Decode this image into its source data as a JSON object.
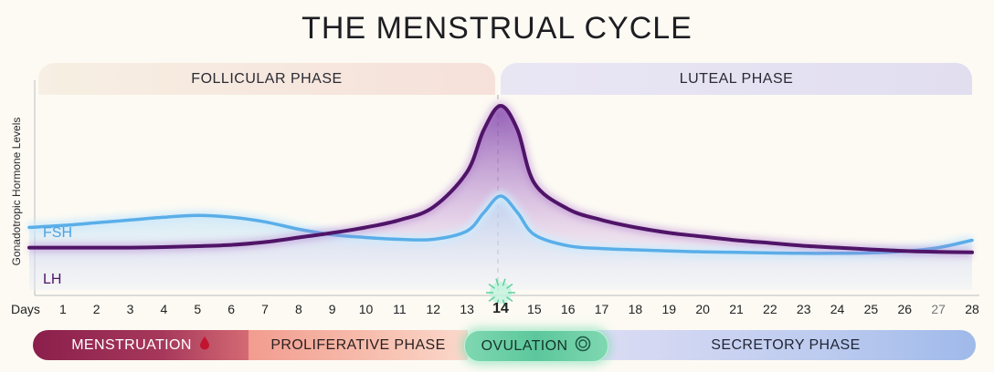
{
  "title": "THE MENSTRUAL CYCLE",
  "phases": {
    "follicular": "FOLLICULAR PHASE",
    "luteal": "LUTEAL PHASE"
  },
  "stages": {
    "menstruation": "MENSTRUATION",
    "proliferative": "PROLIFERATIVE PHASE",
    "ovulation": "OVULATION",
    "secretory": "SECRETORY PHASE"
  },
  "icons": {
    "menstruation": "blood-drop-icon",
    "ovulation": "egg-icon",
    "ovulation_marker": "ovulation-burst-icon"
  },
  "colors": {
    "fsh": "#5aaee8",
    "lh": "#4f1467",
    "menstruation": "#8b1f4c",
    "proliferative": "#f5ae9f",
    "ovulation": "#66cfa4",
    "secretory": "#b3c5ee"
  },
  "chart_data": {
    "type": "line",
    "title": "THE MENSTRUAL CYCLE",
    "xlabel": "Days",
    "ylabel": "Gonadotropic Hormone Levels",
    "x": [
      0,
      1,
      2,
      3,
      4,
      5,
      6,
      7,
      8,
      9,
      10,
      11,
      12,
      13,
      13.5,
      14,
      14.5,
      15,
      16,
      17,
      18,
      19,
      20,
      21,
      22,
      23,
      24,
      25,
      26,
      27,
      28
    ],
    "x_tick_labels": [
      "1",
      "2",
      "3",
      "4",
      "5",
      "6",
      "7",
      "8",
      "9",
      "10",
      "11",
      "12",
      "13",
      "14",
      "15",
      "16",
      "17",
      "18",
      "19",
      "20",
      "21",
      "22",
      "23",
      "24",
      "25",
      "26",
      "27",
      "28"
    ],
    "x_tick_values": [
      1,
      2,
      3,
      4,
      5,
      6,
      7,
      8,
      9,
      10,
      11,
      12,
      13,
      14,
      15,
      16,
      17,
      18,
      19,
      20,
      21,
      22,
      23,
      24,
      25,
      26,
      27,
      28
    ],
    "highlight_tick": "14",
    "muted_tick": "27",
    "xlim": [
      0,
      28
    ],
    "ylim": [
      0,
      100
    ],
    "grid": false,
    "ovulation_day": 14,
    "series": [
      {
        "name": "FSH",
        "color": "#5aaee8",
        "values": [
          32,
          33,
          34.5,
          36,
          37.5,
          38.5,
          37.5,
          35,
          31,
          28,
          26.5,
          25.5,
          25.5,
          30,
          40,
          49,
          40,
          28,
          22,
          20.5,
          19.8,
          19.2,
          18.7,
          18.4,
          18.1,
          17.9,
          17.9,
          18.2,
          19,
          21,
          25
        ]
      },
      {
        "name": "LH",
        "color": "#4f1467",
        "values": [
          21,
          21,
          21,
          21,
          21.3,
          21.8,
          22.5,
          24,
          26.5,
          29,
          32,
          36,
          43,
          62,
          85,
          98,
          85,
          56,
          42,
          36,
          32,
          29,
          27,
          25,
          23.5,
          22,
          21,
          20,
          19.2,
          18.7,
          18.4
        ]
      }
    ],
    "phases": [
      {
        "name": "FOLLICULAR PHASE",
        "from_day": 1,
        "to_day": 14
      },
      {
        "name": "LUTEAL PHASE",
        "from_day": 14,
        "to_day": 28
      }
    ]
  }
}
